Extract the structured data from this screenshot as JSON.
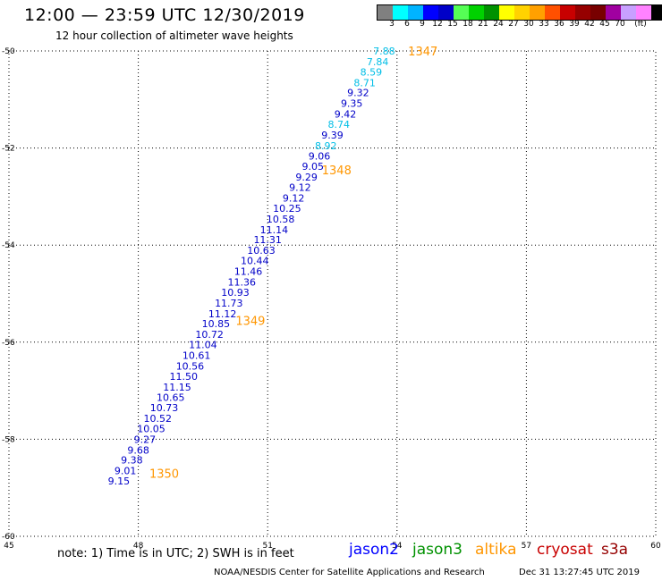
{
  "header": {
    "title": "12:00 — 23:59 UTC 12/30/2019",
    "subtitle": "12 hour collection of altimeter wave heights"
  },
  "colorbar": {
    "swatches": [
      "#808080",
      "#00ffff",
      "#00b4ff",
      "#0000ff",
      "#0000c8",
      "#55ff55",
      "#00d200",
      "#009100",
      "#ffff00",
      "#ffd200",
      "#ffa000",
      "#ff5000",
      "#c80000",
      "#960000",
      "#780000",
      "#a000a0",
      "#c8a0ff",
      "#ff82ff",
      "#000000"
    ],
    "labels": [
      "3",
      "6",
      "9",
      "12",
      "15",
      "18",
      "21",
      "24",
      "27",
      "30",
      "33",
      "36",
      "39",
      "42",
      "45",
      "70",
      "(ft)"
    ]
  },
  "chart_data": {
    "type": "scatter",
    "title": "12:00 — 23:59 UTC 12/30/2019",
    "subtitle": "12 hour collection of altimeter wave heights",
    "xlim": [
      45,
      60
    ],
    "ylim": [
      -60,
      -50
    ],
    "xticks": [
      "45",
      "48",
      "51",
      "54",
      "57",
      "60"
    ],
    "yticks": [
      "-50",
      "-52",
      "-54",
      "-56",
      "-58",
      "-60"
    ],
    "grid": true,
    "series": [
      {
        "name": "altika",
        "points": [
          {
            "lon": 53.7,
            "lat": -50.0,
            "swh": "7.88",
            "color": "#00bee6"
          },
          {
            "lon": 53.55,
            "lat": -50.22,
            "swh": "7.84",
            "color": "#00bee6"
          },
          {
            "lon": 53.4,
            "lat": -50.43,
            "swh": "8.59",
            "color": "#00bee6"
          },
          {
            "lon": 53.25,
            "lat": -50.65,
            "swh": "8.71",
            "color": "#00bee6"
          },
          {
            "lon": 53.1,
            "lat": -50.86,
            "swh": "9.32",
            "color": "#0000c8"
          },
          {
            "lon": 52.95,
            "lat": -51.08,
            "swh": "9.35",
            "color": "#0000c8"
          },
          {
            "lon": 52.8,
            "lat": -51.3,
            "swh": "9.42",
            "color": "#0000c8"
          },
          {
            "lon": 52.65,
            "lat": -51.51,
            "swh": "8.74",
            "color": "#00bee6"
          },
          {
            "lon": 52.5,
            "lat": -51.73,
            "swh": "9.39",
            "color": "#0000c8"
          },
          {
            "lon": 52.35,
            "lat": -51.95,
            "swh": "8.92",
            "color": "#00bee6"
          },
          {
            "lon": 52.2,
            "lat": -52.16,
            "swh": "9.06",
            "color": "#0000c8"
          },
          {
            "lon": 52.05,
            "lat": -52.38,
            "swh": "9.05",
            "color": "#0000c8"
          },
          {
            "lon": 51.9,
            "lat": -52.6,
            "swh": "9.29",
            "color": "#0000c8"
          },
          {
            "lon": 51.75,
            "lat": -52.81,
            "swh": "9.12",
            "color": "#0000c8"
          },
          {
            "lon": 51.6,
            "lat": -53.03,
            "swh": "9.12",
            "color": "#0000c8"
          },
          {
            "lon": 51.45,
            "lat": -53.24,
            "swh": "10.25",
            "color": "#0000c8"
          },
          {
            "lon": 51.3,
            "lat": -53.46,
            "swh": "10.58",
            "color": "#0000c8"
          },
          {
            "lon": 51.15,
            "lat": -53.68,
            "swh": "11.14",
            "color": "#0000c8"
          },
          {
            "lon": 51.0,
            "lat": -53.89,
            "swh": "11.31",
            "color": "#0000c8"
          },
          {
            "lon": 50.85,
            "lat": -54.11,
            "swh": "10.63",
            "color": "#0000c8"
          },
          {
            "lon": 50.7,
            "lat": -54.32,
            "swh": "10.44",
            "color": "#0000c8"
          },
          {
            "lon": 50.55,
            "lat": -54.54,
            "swh": "11.46",
            "color": "#0000c8"
          },
          {
            "lon": 50.4,
            "lat": -54.76,
            "swh": "11.36",
            "color": "#0000c8"
          },
          {
            "lon": 50.25,
            "lat": -54.97,
            "swh": "10.93",
            "color": "#0000c8"
          },
          {
            "lon": 50.1,
            "lat": -55.19,
            "swh": "11.73",
            "color": "#0000c8"
          },
          {
            "lon": 49.95,
            "lat": -55.41,
            "swh": "11.12",
            "color": "#0000c8"
          },
          {
            "lon": 49.8,
            "lat": -55.62,
            "swh": "10.85",
            "color": "#0000c8"
          },
          {
            "lon": 49.65,
            "lat": -55.84,
            "swh": "10.72",
            "color": "#0000c8"
          },
          {
            "lon": 49.5,
            "lat": -56.05,
            "swh": "11.04",
            "color": "#0000c8"
          },
          {
            "lon": 49.35,
            "lat": -56.27,
            "swh": "10.61",
            "color": "#0000c8"
          },
          {
            "lon": 49.2,
            "lat": -56.49,
            "swh": "10.56",
            "color": "#0000c8"
          },
          {
            "lon": 49.05,
            "lat": -56.7,
            "swh": "11.50",
            "color": "#0000c8"
          },
          {
            "lon": 48.9,
            "lat": -56.92,
            "swh": "11.15",
            "color": "#0000c8"
          },
          {
            "lon": 48.75,
            "lat": -57.14,
            "swh": "10.65",
            "color": "#0000c8"
          },
          {
            "lon": 48.6,
            "lat": -57.35,
            "swh": "10.73",
            "color": "#0000c8"
          },
          {
            "lon": 48.45,
            "lat": -57.57,
            "swh": "10.52",
            "color": "#0000c8"
          },
          {
            "lon": 48.3,
            "lat": -57.78,
            "swh": "10.05",
            "color": "#0000c8"
          },
          {
            "lon": 48.15,
            "lat": -58.0,
            "swh": "9.27",
            "color": "#0000c8"
          },
          {
            "lon": 48.0,
            "lat": -58.22,
            "swh": "9.68",
            "color": "#0000c8"
          },
          {
            "lon": 47.85,
            "lat": -58.43,
            "swh": "9.38",
            "color": "#0000c8"
          },
          {
            "lon": 47.7,
            "lat": -58.65,
            "swh": "9.01",
            "color": "#0000c8"
          },
          {
            "lon": 47.55,
            "lat": -58.86,
            "swh": "9.15",
            "color": "#0000c8"
          }
        ],
        "time_labels": [
          {
            "lon": 54.6,
            "lat": -50.0,
            "text": "1347"
          },
          {
            "lon": 52.6,
            "lat": -52.45,
            "text": "1348"
          },
          {
            "lon": 50.6,
            "lat": -55.55,
            "text": "1349"
          },
          {
            "lon": 48.6,
            "lat": -58.7,
            "text": "1350"
          }
        ]
      }
    ]
  },
  "footer": {
    "note": "note: 1) Time is in UTC; 2) SWH is in feet",
    "legend": [
      {
        "label": "jason2",
        "color": "#0000ff"
      },
      {
        "label": "jason3",
        "color": "#009100"
      },
      {
        "label": "altika",
        "color": "#ff9600"
      },
      {
        "label": "cryosat",
        "color": "#c80000"
      },
      {
        "label": "s3a",
        "color": "#960000"
      }
    ],
    "credit": "NOAA/NESDIS Center for Satellite Applications and Research",
    "timestamp": "Dec 31 13:27:45 UTC 2019"
  },
  "colors": {
    "time_label": "#ff9600",
    "grid": "#000000"
  }
}
